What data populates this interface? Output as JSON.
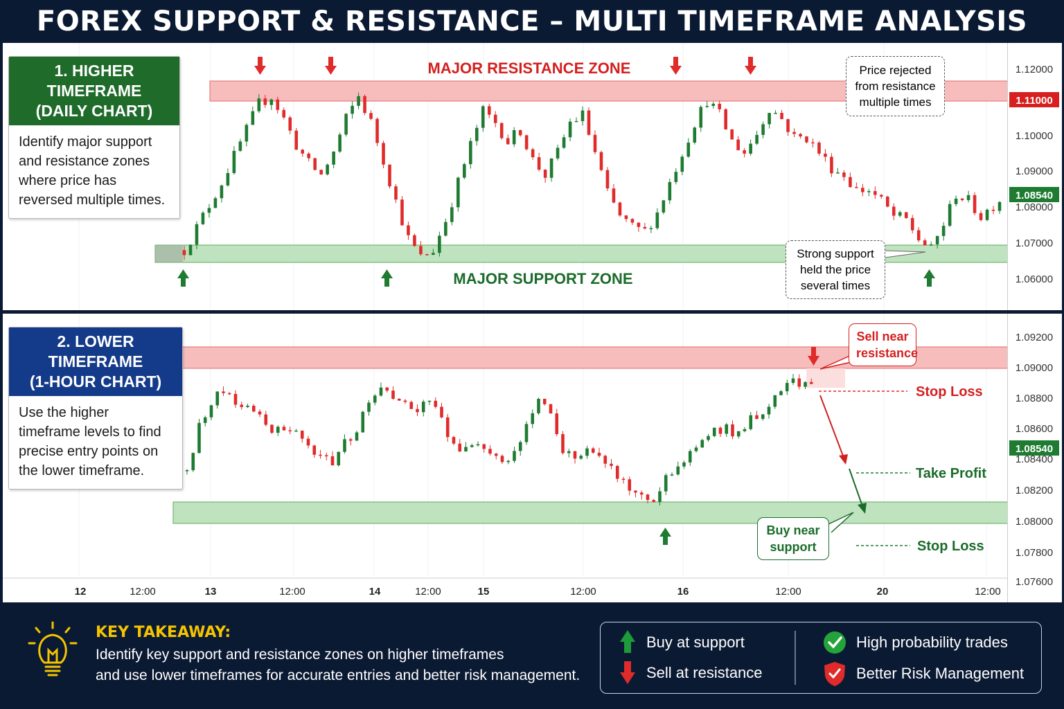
{
  "title": "FOREX SUPPORT & RESISTANCE – MULTI TIMEFRAME ANALYSIS",
  "colors": {
    "bull": "#1e7b31",
    "bear": "#e02b2b",
    "resistance_zone": "#f7bcbc",
    "support_zone": "#bfe3bf",
    "background": "#0b1a33",
    "takeaway": "#f5c400"
  },
  "panel1": {
    "header": "1. HIGHER TIMEFRAME\n(DAILY CHART)",
    "body": "Identify major support and resistance zones where price has reversed multiple times.",
    "resistance_label": "MAJOR RESISTANCE ZONE",
    "support_label": "MAJOR SUPPORT ZONE",
    "callout_resistance": "Price rejected from resistance multiple times",
    "callout_support": "Strong support held the price several times",
    "axis_ticks": [
      "1.12000",
      "1.10000",
      "1.09000",
      "1.08000",
      "1.07000",
      "1.06000"
    ],
    "price_tags": {
      "resistance": "1.11000",
      "current": "1.08540"
    },
    "resistance_zone": [
      1.1065,
      1.1125
    ],
    "support_zone": [
      1.0655,
      1.07
    ]
  },
  "panel2": {
    "header": "2. LOWER TIMEFRAME\n(1-HOUR CHART)",
    "body": "Use the higher timeframe levels to find precise entry points on the lower timeframe.",
    "sell_callout": "Sell near resistance",
    "buy_callout": "Buy near support",
    "stop_loss_top": "Stop Loss",
    "take_profit": "Take Profit",
    "stop_loss_bottom": "Stop Loss",
    "axis_ticks": [
      "1.09200",
      "1.09000",
      "1.08800",
      "1.08600",
      "1.08400",
      "1.08200",
      "1.08000",
      "1.07800",
      "1.07600"
    ],
    "price_tags": {
      "current": "1.08540"
    },
    "resistance_zone": [
      1.09,
      1.0914
    ],
    "support_zone": [
      1.08,
      1.0814
    ]
  },
  "time_axis": [
    "12",
    "12:00",
    "13",
    "12:00",
    "14",
    "12:00",
    "15",
    "12:00",
    "16",
    "12:00",
    "20",
    "12:00"
  ],
  "takeaway": {
    "title": "KEY TAKEAWAY:",
    "line1": "Identify key support  and resistance zones on higher timeframes",
    "line2": "and use lower timeframes for accurate entries and better risk management."
  },
  "legend": {
    "buy": "Buy at support",
    "sell": "Sell at resistance",
    "high_prob": "High probability trades",
    "risk": "Better Risk Management"
  },
  "icons": [
    "lightbulb-icon",
    "arrow-up-icon",
    "arrow-down-icon",
    "checkmark-icon",
    "shield-icon"
  ],
  "chart_data": [
    {
      "type": "candlestick",
      "name": "Daily",
      "y_range": [
        1.056,
        1.123
      ],
      "close_path": [
        1.07,
        1.076,
        1.082,
        1.088,
        1.095,
        1.102,
        1.109,
        1.111,
        1.105,
        1.098,
        1.093,
        1.09,
        1.096,
        1.105,
        1.111,
        1.104,
        1.094,
        1.083,
        1.073,
        1.068,
        1.07,
        1.078,
        1.088,
        1.098,
        1.107,
        1.104,
        1.099,
        1.102,
        1.094,
        1.09,
        1.096,
        1.104,
        1.106,
        1.096,
        1.085,
        1.079,
        1.076,
        1.075,
        1.08,
        1.088,
        1.096,
        1.104,
        1.11,
        1.106,
        1.099,
        1.096,
        1.101,
        1.108,
        1.105,
        1.1,
        1.1,
        1.096,
        1.092,
        1.09,
        1.086,
        1.086,
        1.083,
        1.079,
        1.078,
        1.073,
        1.07,
        1.077,
        1.085,
        1.083,
        1.079,
        1.082,
        1.085
      ]
    },
    {
      "type": "candlestick",
      "name": "1-Hour",
      "y_range": [
        1.0755,
        1.0935
      ],
      "close_path": [
        1.083,
        1.086,
        1.088,
        1.0885,
        1.088,
        1.0875,
        1.087,
        1.086,
        1.0858,
        1.0855,
        1.0845,
        1.0838,
        1.0835,
        1.0848,
        1.086,
        1.0875,
        1.0888,
        1.0884,
        1.088,
        1.087,
        1.088,
        1.0865,
        1.085,
        1.0845,
        1.0848,
        1.0842,
        1.0835,
        1.084,
        1.086,
        1.088,
        1.087,
        1.0845,
        1.084,
        1.0845,
        1.084,
        1.083,
        1.0822,
        1.0815,
        1.0805,
        1.0815,
        1.083,
        1.084,
        1.0845,
        1.0855,
        1.086,
        1.0858,
        1.0862,
        1.087,
        1.0878,
        1.0888,
        1.0894,
        1.089,
        1.0885
      ]
    }
  ]
}
